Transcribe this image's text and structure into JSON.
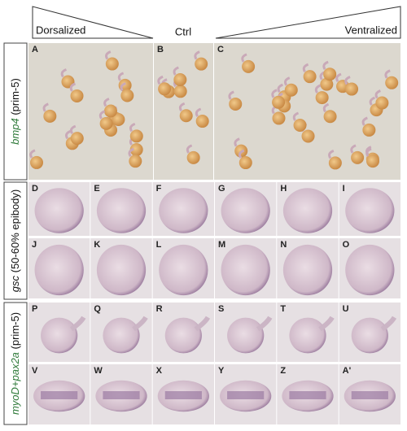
{
  "header": {
    "left": "Dorsalized",
    "center": "Ctrl",
    "right": "Ventralized"
  },
  "rows": [
    {
      "gene": "bmp4",
      "stage": "(prim-5)"
    },
    {
      "gene": "gsc",
      "stage": "(50-60% epibody)"
    },
    {
      "gene": "myoD+pax2a",
      "stage": "(prim-5)"
    }
  ],
  "panels": {
    "bmp4": [
      "A",
      "B",
      "C"
    ],
    "gsc_lateral": [
      "D",
      "E",
      "F",
      "G",
      "H",
      "I"
    ],
    "gsc_dorsal": [
      "J",
      "K",
      "L",
      "M",
      "N",
      "O"
    ],
    "myod_lateral": [
      "P",
      "Q",
      "R",
      "S",
      "T",
      "U"
    ],
    "myod_dorsal": [
      "V",
      "W",
      "X",
      "Y",
      "Z",
      "A'"
    ]
  }
}
